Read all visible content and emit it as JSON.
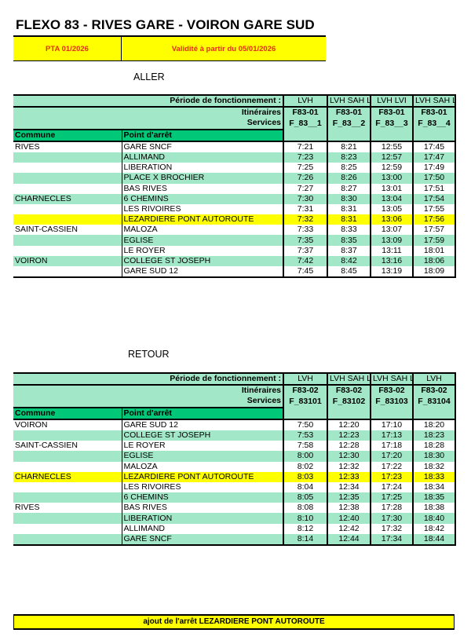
{
  "title": "FLEXO 83 - RIVES GARE - VOIRON GARE SUD",
  "banner": {
    "pta": "PTA 01/2026",
    "validity": "Validité à partir du 05/01/2026"
  },
  "labels": {
    "periode": "Période de fonctionnement :",
    "itineraires": "Itinéraires",
    "services": "Services",
    "commune": "Commune",
    "point": "Point d'arrêt"
  },
  "colors": {
    "row_green": "#a2e8c8",
    "header_green": "#00c878",
    "highlight": "#ffff00",
    "banner_text": "#e53010"
  },
  "aller": {
    "heading": "ALLER",
    "periods": [
      "LVH",
      "LVH\nSAH\nLVI\nSAI\nLVE\nSAE",
      "LVH\n\nLVI",
      "LVH\nSAH\nLVI\nSAI"
    ],
    "itineraires": [
      "F83-01",
      "F83-01",
      "F83-01",
      "F83-01"
    ],
    "services": [
      "F_83__1",
      "F_83__2",
      "F_83__3",
      "F_83__4"
    ],
    "rows": [
      {
        "commune": "RIVES",
        "stop": "GARE SNCF",
        "times": [
          "7:21",
          "8:21",
          "12:55",
          "17:45"
        ],
        "style": "white"
      },
      {
        "commune": "",
        "stop": "ALLIMAND",
        "times": [
          "7:23",
          "8:23",
          "12:57",
          "17:47"
        ],
        "style": "green"
      },
      {
        "commune": "",
        "stop": "LIBERATION",
        "times": [
          "7:25",
          "8:25",
          "12:59",
          "17:49"
        ],
        "style": "white"
      },
      {
        "commune": "",
        "stop": "PLACE X BROCHIER",
        "times": [
          "7:26",
          "8:26",
          "13:00",
          "17:50"
        ],
        "style": "green"
      },
      {
        "commune": "",
        "stop": "BAS RIVES",
        "times": [
          "7:27",
          "8:27",
          "13:01",
          "17:51"
        ],
        "style": "white"
      },
      {
        "commune": "CHARNECLES",
        "stop": "6 CHEMINS",
        "times": [
          "7:30",
          "8:30",
          "13:04",
          "17:54"
        ],
        "style": "green"
      },
      {
        "commune": "",
        "stop": "LES RIVOIRES",
        "times": [
          "7:31",
          "8:31",
          "13:05",
          "17:55"
        ],
        "style": "white"
      },
      {
        "commune": "",
        "stop": "LEZARDIERE PONT AUTOROUTE",
        "times": [
          "7:32",
          "8:31",
          "13:06",
          "17:56"
        ],
        "style": "yellow"
      },
      {
        "commune": "SAINT-CASSIEN",
        "stop": "MALOZA",
        "times": [
          "7:33",
          "8:33",
          "13:07",
          "17:57"
        ],
        "style": "white"
      },
      {
        "commune": "",
        "stop": "EGLISE",
        "times": [
          "7:35",
          "8:35",
          "13:09",
          "17:59"
        ],
        "style": "green"
      },
      {
        "commune": "",
        "stop": "LE ROYER",
        "times": [
          "7:37",
          "8:37",
          "13:11",
          "18:01"
        ],
        "style": "white"
      },
      {
        "commune": "VOIRON",
        "stop": "COLLEGE ST JOSEPH",
        "times": [
          "7:42",
          "8:42",
          "13:16",
          "18:06"
        ],
        "style": "green"
      },
      {
        "commune": "",
        "stop": "GARE SUD 12",
        "times": [
          "7:45",
          "8:45",
          "13:19",
          "18:09"
        ],
        "style": "white"
      }
    ]
  },
  "retour": {
    "heading": "RETOUR",
    "periods": [
      "LVH",
      "LVH\nSAH\nLVI\nSAI",
      "LVH\nSAH\nLVI\nSAI\nLVE\nSAE",
      "LVH"
    ],
    "itineraires": [
      "F83-02",
      "F83-02",
      "F83-02",
      "F83-02"
    ],
    "services": [
      "F_83101",
      "F_83102",
      "F_83103",
      "F_83104"
    ],
    "rows": [
      {
        "commune": "VOIRON",
        "stop": "GARE SUD 12",
        "times": [
          "7:50",
          "12:20",
          "17:10",
          "18:20"
        ],
        "style": "white"
      },
      {
        "commune": "",
        "stop": "COLLEGE ST JOSEPH",
        "times": [
          "7:53",
          "12:23",
          "17:13",
          "18:23"
        ],
        "style": "green"
      },
      {
        "commune": "SAINT-CASSIEN",
        "stop": "LE ROYER",
        "times": [
          "7:58",
          "12:28",
          "17:18",
          "18:28"
        ],
        "style": "white"
      },
      {
        "commune": "",
        "stop": "EGLISE",
        "times": [
          "8:00",
          "12:30",
          "17:20",
          "18:30"
        ],
        "style": "green"
      },
      {
        "commune": "",
        "stop": "MALOZA",
        "times": [
          "8:02",
          "12:32",
          "17:22",
          "18:32"
        ],
        "style": "white"
      },
      {
        "commune": "CHARNECLES",
        "stop": "LEZARDIERE PONT AUTOROUTE",
        "times": [
          "8:03",
          "12:33",
          "17:23",
          "18:33"
        ],
        "style": "yellow"
      },
      {
        "commune": "",
        "stop": "LES RIVOIRES",
        "times": [
          "8:04",
          "12:34",
          "17:24",
          "18:34"
        ],
        "style": "white"
      },
      {
        "commune": "",
        "stop": "6 CHEMINS",
        "times": [
          "8:05",
          "12:35",
          "17:25",
          "18:35"
        ],
        "style": "green"
      },
      {
        "commune": "RIVES",
        "stop": "BAS RIVES",
        "times": [
          "8:08",
          "12:38",
          "17:28",
          "18:38"
        ],
        "style": "white"
      },
      {
        "commune": "",
        "stop": "LIBERATION",
        "times": [
          "8:10",
          "12:40",
          "17:30",
          "18:40"
        ],
        "style": "green"
      },
      {
        "commune": "",
        "stop": "ALLIMAND",
        "times": [
          "8:12",
          "12:42",
          "17:32",
          "18:42"
        ],
        "style": "white"
      },
      {
        "commune": "",
        "stop": "GARE SNCF",
        "times": [
          "8:14",
          "12:44",
          "17:34",
          "18:44"
        ],
        "style": "green"
      }
    ]
  },
  "footer": "ajout de l'arrêt LEZARDIERE PONT AUTOROUTE"
}
